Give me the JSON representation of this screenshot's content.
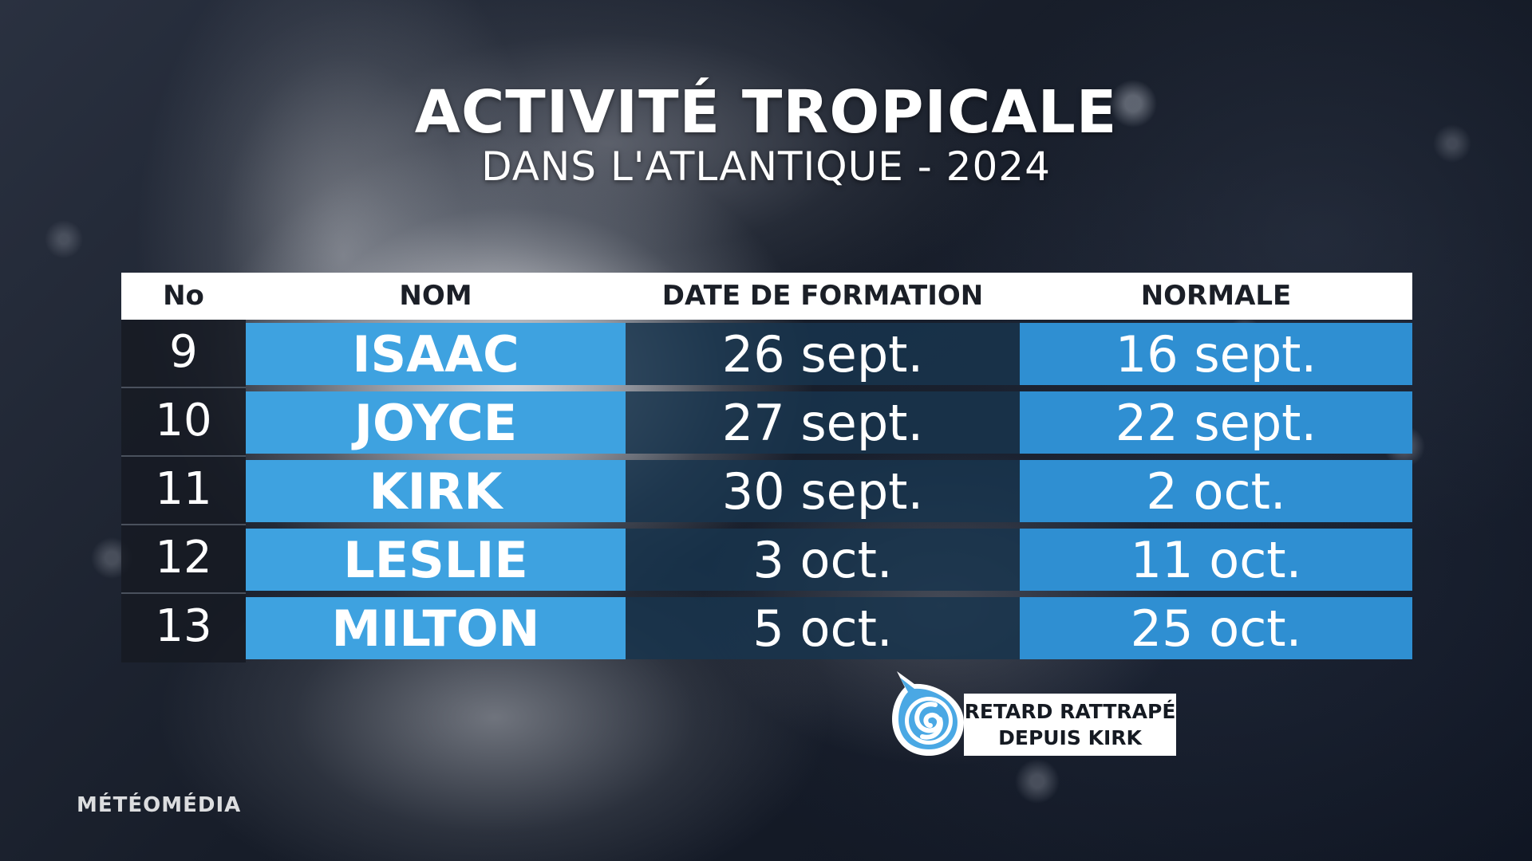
{
  "title": "ACTIVITÉ TROPICALE",
  "subtitle": "DANS L'ATLANTIQUE - 2024",
  "table": {
    "headers": {
      "no": "No",
      "nom": "NOM",
      "date": "DATE DE FORMATION",
      "normale": "NORMALE"
    },
    "rows": [
      {
        "no": "9",
        "nom": "ISAAC",
        "date": "26 sept.",
        "normale": "16 sept."
      },
      {
        "no": "10",
        "nom": "JOYCE",
        "date": "27 sept.",
        "normale": "22 sept."
      },
      {
        "no": "11",
        "nom": "KIRK",
        "date": "30 sept.",
        "normale": "2 oct."
      },
      {
        "no": "12",
        "nom": "LESLIE",
        "date": "3 oct.",
        "normale": "11 oct."
      },
      {
        "no": "13",
        "nom": "MILTON",
        "date": "5 oct.",
        "normale": "25 oct."
      }
    ]
  },
  "callout": {
    "line1": "RETARD RATTRAPÉ",
    "line2": "DEPUIS KIRK",
    "icon": "hurricane-icon"
  },
  "logo": "MÉTÉOMÉDIA",
  "colors": {
    "name_cell": "#3ea2e0",
    "normal_cell": "#2f8fd2",
    "date_cell": "#18344e"
  }
}
